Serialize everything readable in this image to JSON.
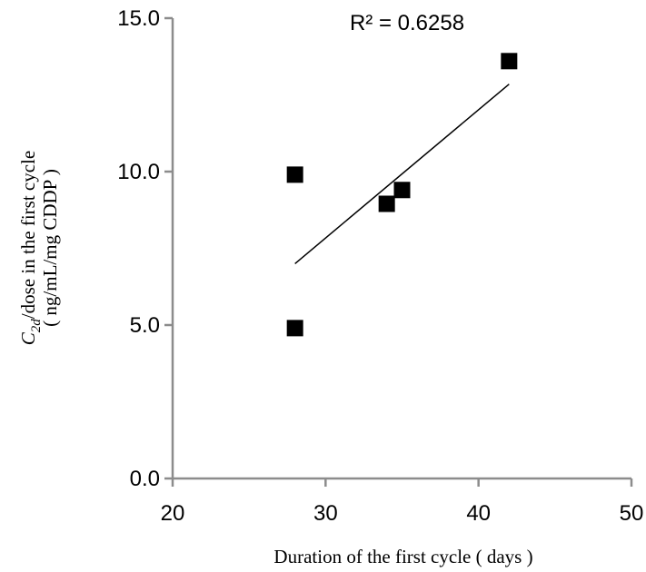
{
  "chart_data": {
    "type": "scatter",
    "xlabel": "Duration of the first cycle ( days )",
    "ylabel_prefix": "C",
    "ylabel_subscript": "2d",
    "ylabel_rest": "/dose in the first cycle",
    "ylabel_line2": "( ng/mL/mg CDDP )",
    "xlim": [
      20,
      50
    ],
    "ylim": [
      0,
      15
    ],
    "x_ticks": [
      20,
      30,
      40,
      50
    ],
    "y_ticks": [
      0,
      5,
      10,
      15
    ],
    "y_tick_labels": [
      "0.0",
      "5.0",
      "10.0",
      "15.0"
    ],
    "series": [
      {
        "marker": "square",
        "color": "#000000",
        "x": [
          28,
          28,
          34,
          35,
          42
        ],
        "y": [
          9.9,
          4.9,
          8.95,
          9.4,
          13.6
        ]
      }
    ],
    "trendline": {
      "type": "linear",
      "x": [
        28,
        42
      ],
      "y": [
        7.0,
        12.85
      ],
      "r_squared_label": "R² = 0.6258"
    },
    "grid": false
  }
}
